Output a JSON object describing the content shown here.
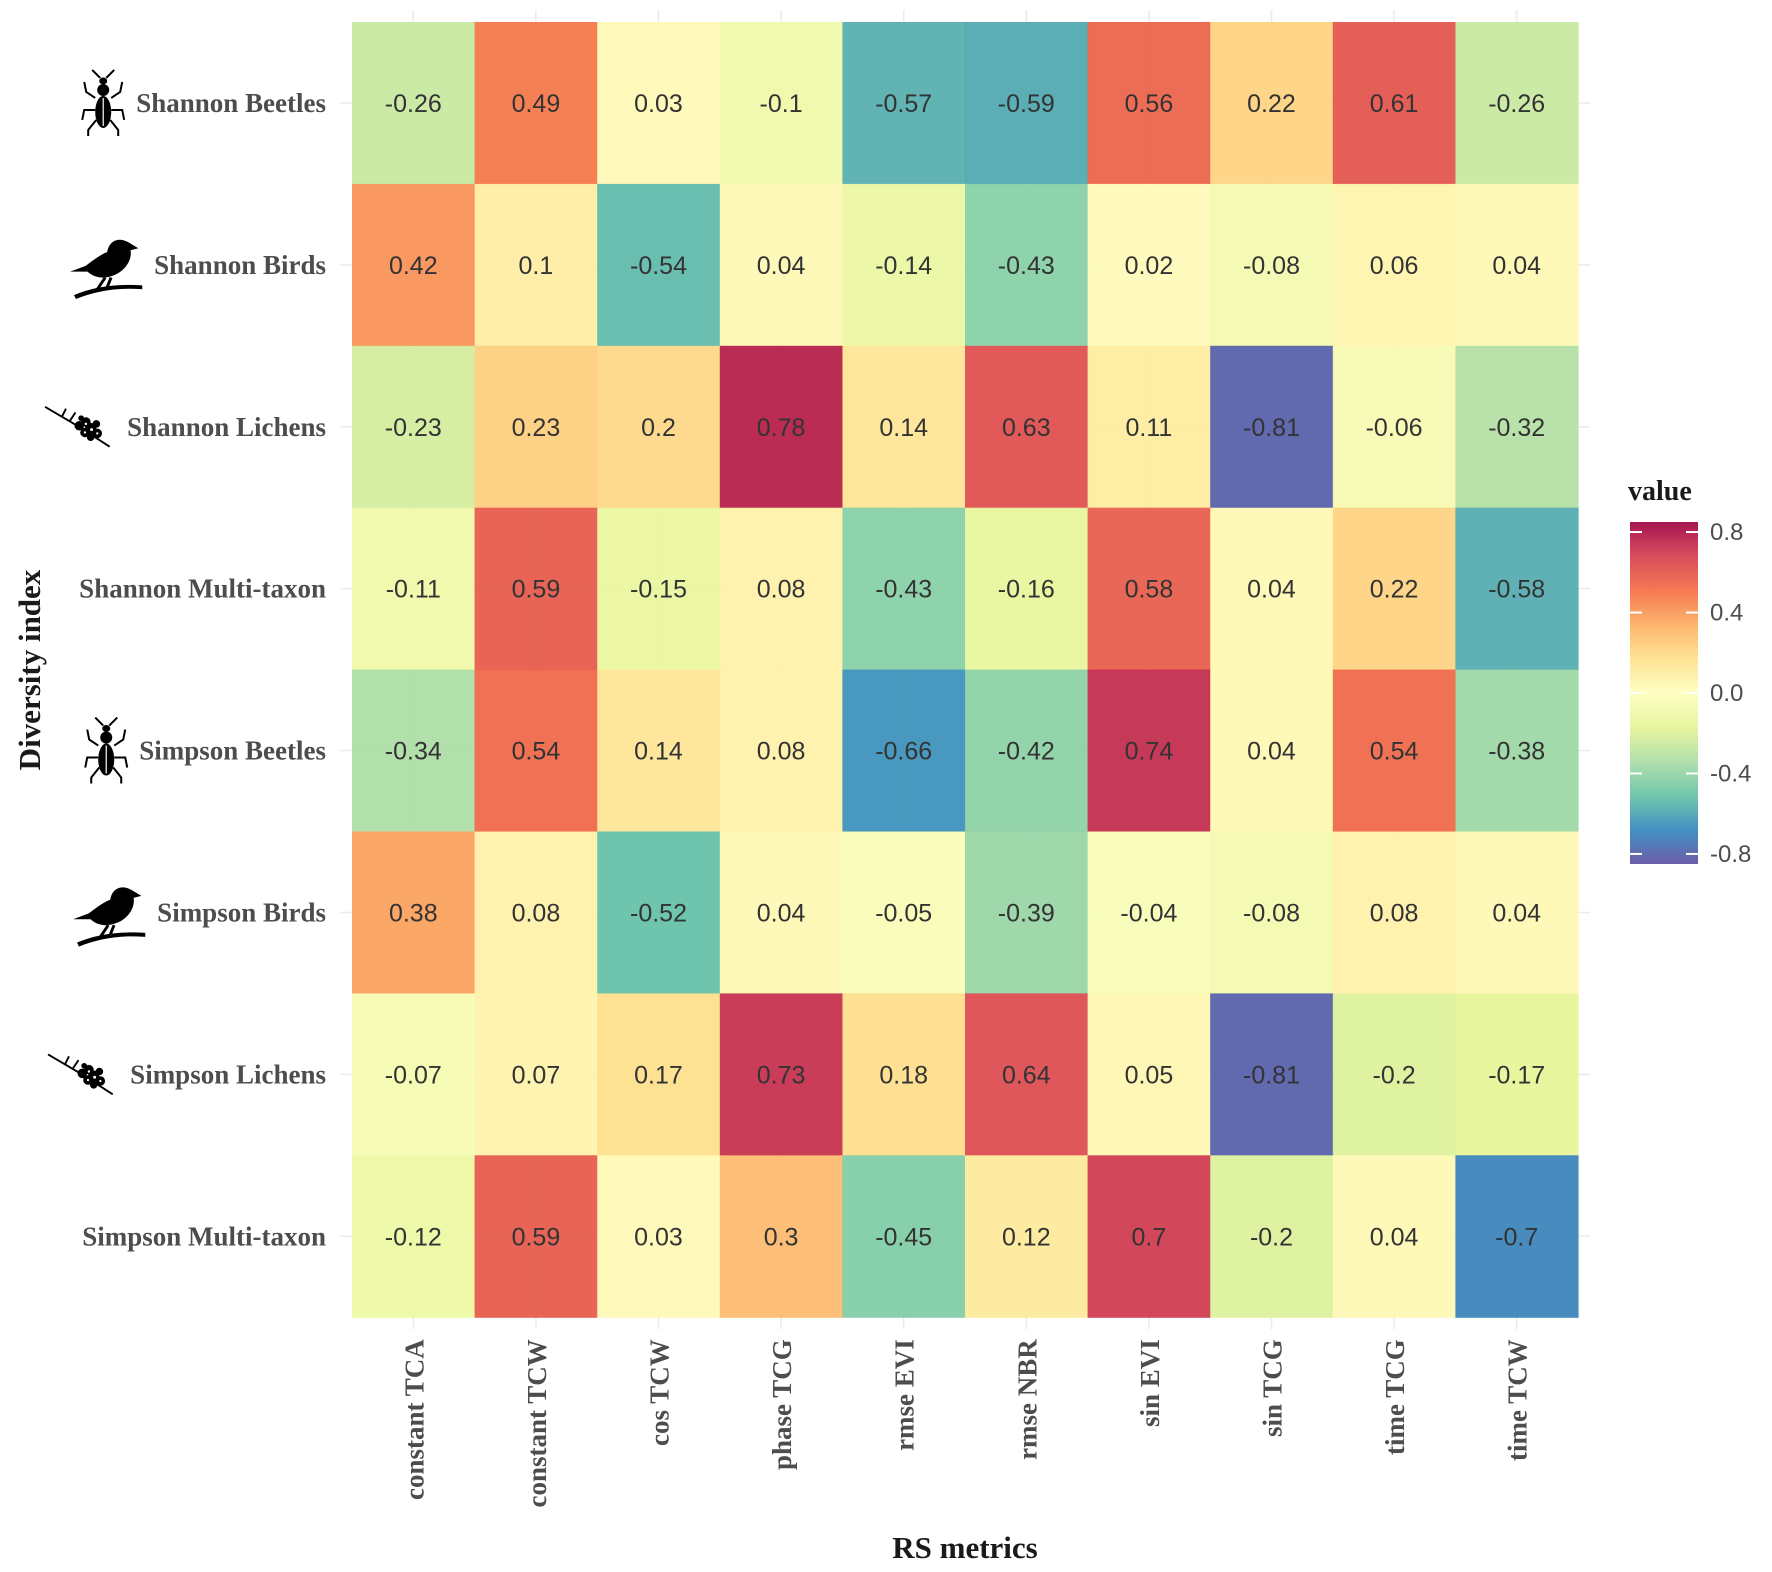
{
  "chart_data": {
    "type": "heatmap",
    "xlabel": "RS metrics",
    "ylabel": "Diversity index",
    "columns": [
      "constant TCA",
      "constant TCW",
      "cos TCW",
      "phase TCG",
      "rmse EVI",
      "rmse NBR",
      "sin EVI",
      "sin TCG",
      "time TCG",
      "time TCW"
    ],
    "rows": [
      {
        "label": "Shannon Beetles",
        "icon": "beetle-icon",
        "values": [
          -0.26,
          0.49,
          0.03,
          -0.1,
          -0.57,
          -0.59,
          0.56,
          0.22,
          0.61,
          -0.26
        ]
      },
      {
        "label": "Shannon Birds",
        "icon": "bird-icon",
        "values": [
          0.42,
          0.1,
          -0.54,
          0.04,
          -0.14,
          -0.43,
          0.02,
          -0.08,
          0.06,
          0.04
        ]
      },
      {
        "label": "Shannon Lichens",
        "icon": "lichen-icon",
        "values": [
          -0.23,
          0.23,
          0.2,
          0.78,
          0.14,
          0.63,
          0.11,
          -0.81,
          -0.06,
          -0.32
        ]
      },
      {
        "label": "Shannon Multi-taxon",
        "icon": "",
        "values": [
          -0.11,
          0.59,
          -0.15,
          0.08,
          -0.43,
          -0.16,
          0.58,
          0.04,
          0.22,
          -0.58
        ]
      },
      {
        "label": "Simpson Beetles",
        "icon": "beetle-icon",
        "values": [
          -0.34,
          0.54,
          0.14,
          0.08,
          -0.66,
          -0.42,
          0.74,
          0.04,
          0.54,
          -0.38
        ]
      },
      {
        "label": "Simpson Birds",
        "icon": "bird-icon",
        "values": [
          0.38,
          0.08,
          -0.52,
          0.04,
          -0.05,
          -0.39,
          -0.04,
          -0.08,
          0.08,
          0.04
        ]
      },
      {
        "label": "Simpson Lichens",
        "icon": "lichen-icon",
        "values": [
          -0.07,
          0.07,
          0.17,
          0.73,
          0.18,
          0.64,
          0.05,
          -0.81,
          -0.2,
          -0.17
        ]
      },
      {
        "label": "Simpson Multi-taxon",
        "icon": "",
        "values": [
          -0.12,
          0.59,
          0.03,
          0.3,
          -0.45,
          0.12,
          0.7,
          -0.2,
          0.04,
          -0.7
        ]
      }
    ],
    "legend": {
      "title": "value",
      "position": "right",
      "ticks": [
        0.8,
        0.4,
        0.0,
        -0.4,
        -0.8
      ],
      "tick_labels": [
        "0.8",
        "0.4",
        "0.0",
        "-0.4",
        "-0.8"
      ],
      "range": [
        -0.85,
        0.85
      ]
    },
    "colorscale": {
      "name": "Spectral",
      "colors": [
        "#5e4fa2",
        "#3288bd",
        "#66c2a5",
        "#abdda4",
        "#e6f598",
        "#ffffbf",
        "#fee08b",
        "#fdae61",
        "#f46d43",
        "#d53e4f",
        "#9e0142"
      ]
    }
  }
}
